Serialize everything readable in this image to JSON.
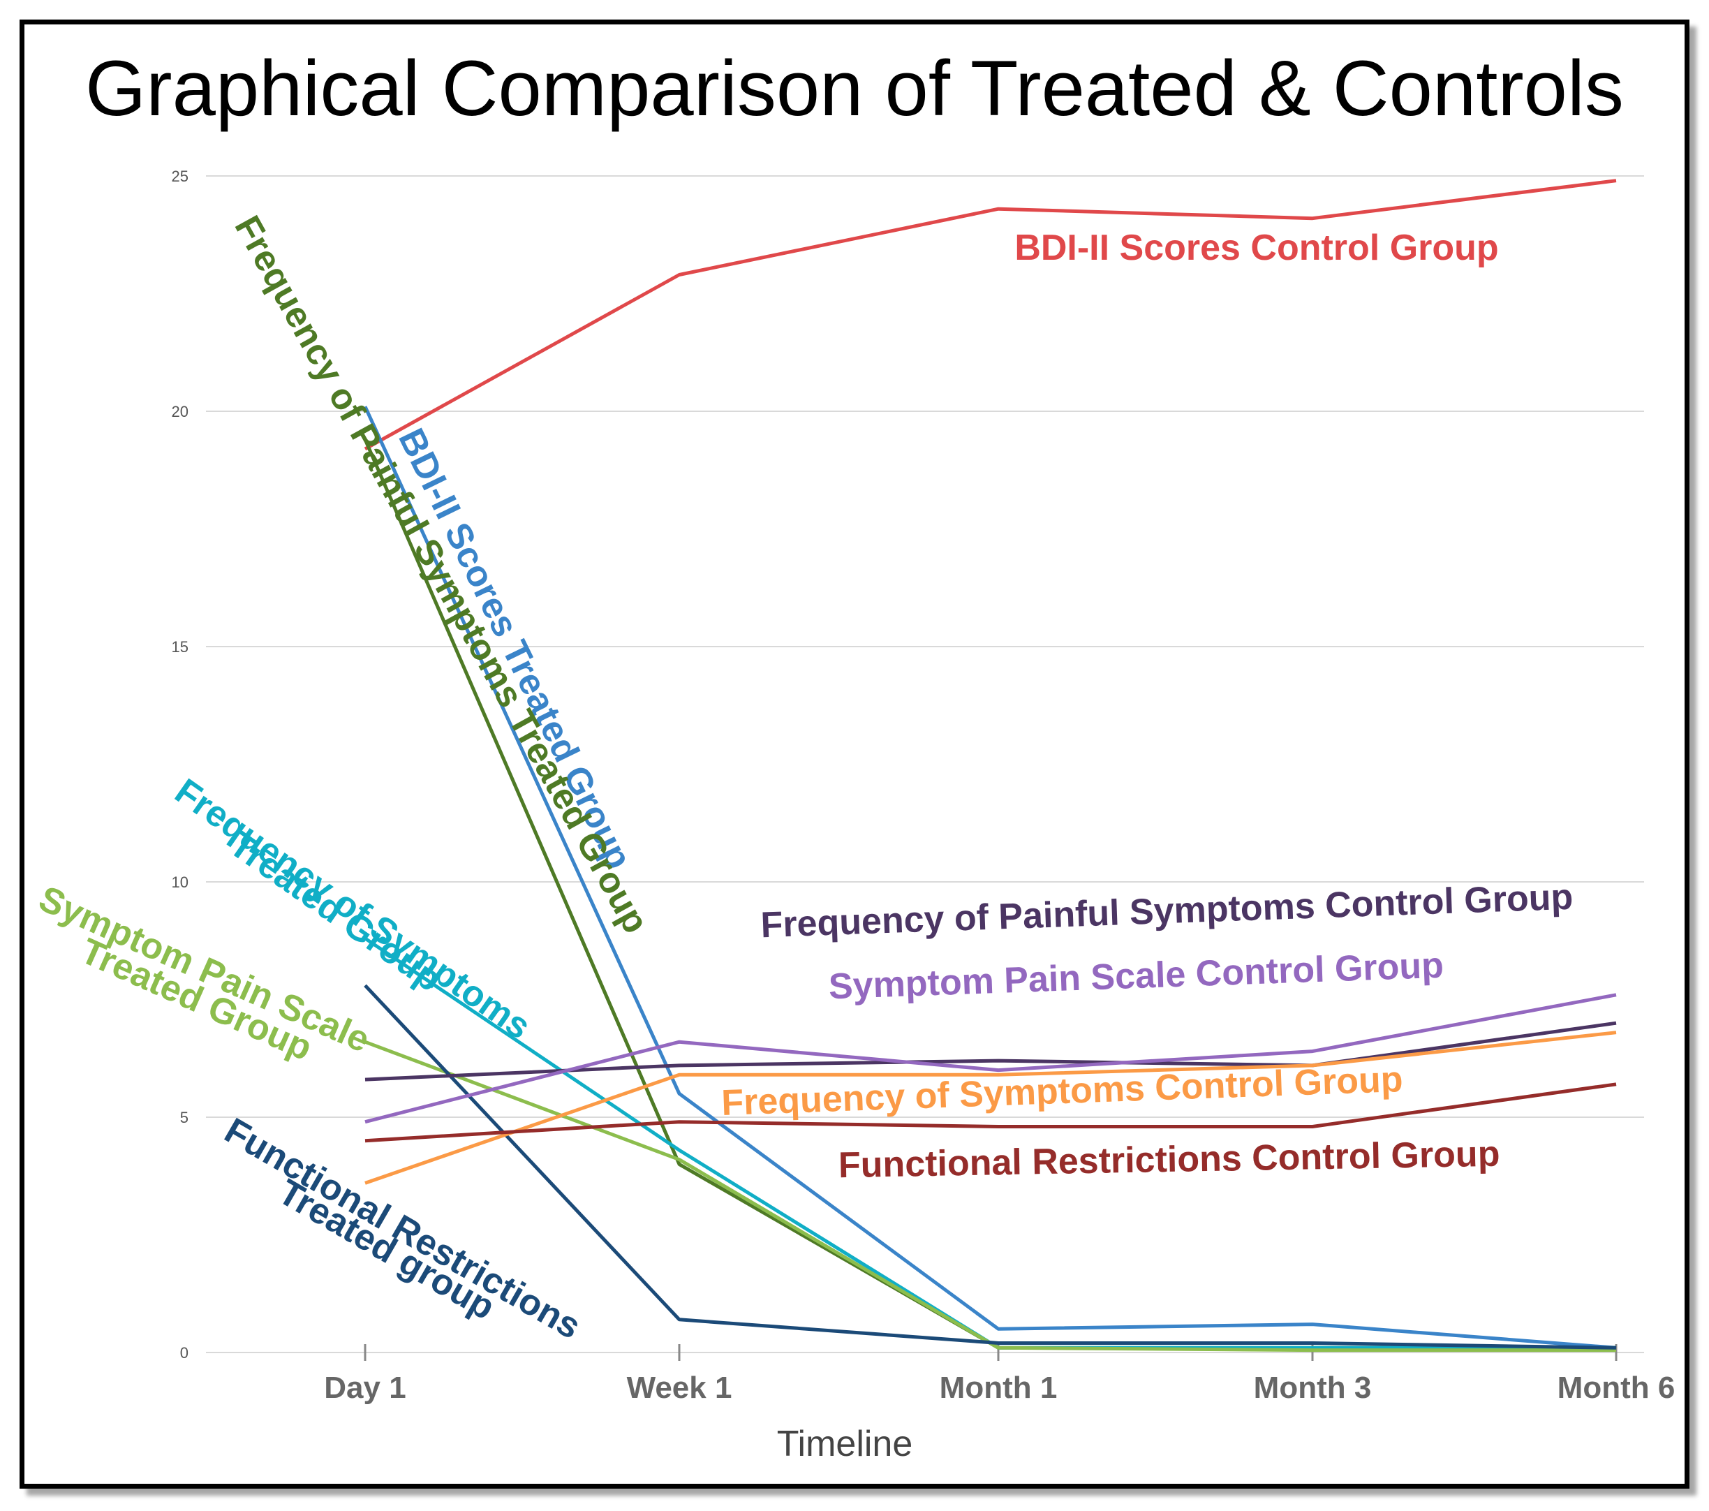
{
  "chart_data": {
    "type": "line",
    "title": "Graphical Comparison of Treated & Controls",
    "xlabel": "Timeline",
    "ylabel": "",
    "categories": [
      "Day 1",
      "Week 1",
      "Month 1",
      "Month 3",
      "Month 6"
    ],
    "ylim": [
      0,
      25
    ],
    "yticks": [
      0,
      5,
      10,
      15,
      20,
      25
    ],
    "grid": true,
    "series": [
      {
        "name": "BDI-II Scores Control Group",
        "color": "#e0484a",
        "values": [
          19.2,
          22.9,
          24.3,
          24.1,
          24.9
        ]
      },
      {
        "name": "BDI-II Scores Treated Group",
        "color": "#3a84c9",
        "values": [
          20.1,
          5.5,
          0.5,
          0.6,
          0.1
        ]
      },
      {
        "name": "Frequency of Painful Symptoms Treated Group",
        "color": "#4e7a25",
        "values": [
          19.4,
          4.0,
          0.1,
          0.1,
          0.1
        ]
      },
      {
        "name": "Frequency of Symptoms Treated Group",
        "color": "#10aec6",
        "values": [
          8.8,
          4.3,
          0.1,
          0.1,
          0.1
        ]
      },
      {
        "name": "Symptom Pain Scale Treated Group",
        "color": "#8cbd4d",
        "values": [
          6.6,
          4.1,
          0.1,
          0.05,
          0.05
        ]
      },
      {
        "name": "Functional Restrictions Treated group",
        "color": "#1b4a78",
        "values": [
          7.8,
          0.7,
          0.2,
          0.2,
          0.1
        ]
      },
      {
        "name": "Frequency of Painful Symptoms Control Group",
        "color": "#4b3563",
        "values": [
          5.8,
          6.1,
          6.2,
          6.1,
          7.0
        ]
      },
      {
        "name": "Symptom Pain Scale Control Group",
        "color": "#9368bf",
        "values": [
          4.9,
          6.6,
          6.0,
          6.4,
          7.6
        ]
      },
      {
        "name": "Frequency of Symptoms Control Group",
        "color": "#fb9a46",
        "values": [
          3.6,
          5.9,
          5.9,
          6.1,
          6.8
        ]
      },
      {
        "name": "Functional Restrictions Control Group",
        "color": "#952c2a",
        "values": [
          4.5,
          4.9,
          4.8,
          4.8,
          5.7
        ]
      }
    ],
    "labels": [
      {
        "text": "BDI-II Scores Control Group",
        "series": 0
      },
      {
        "text": "BDI-II Scores Treated Group",
        "series": 1
      },
      {
        "text": "Frequency of Painful Symptoms Treated Group",
        "series": 2
      },
      {
        "text": "Frequency of Symptoms",
        "series": 3
      },
      {
        "text": "Treated Group",
        "series": 3
      },
      {
        "text": "Symptom Pain Scale",
        "series": 4
      },
      {
        "text": "Treated Group",
        "series": 4
      },
      {
        "text": "Functional Restrictions",
        "series": 5
      },
      {
        "text": "Treated group",
        "series": 5
      },
      {
        "text": "Frequency of Painful Symptoms Control Group",
        "series": 6
      },
      {
        "text": "Symptom Pain Scale Control Group",
        "series": 7
      },
      {
        "text": "Frequency of Symptoms Control Group",
        "series": 8
      },
      {
        "text": "Functional Restrictions Control Group",
        "series": 9
      }
    ]
  }
}
